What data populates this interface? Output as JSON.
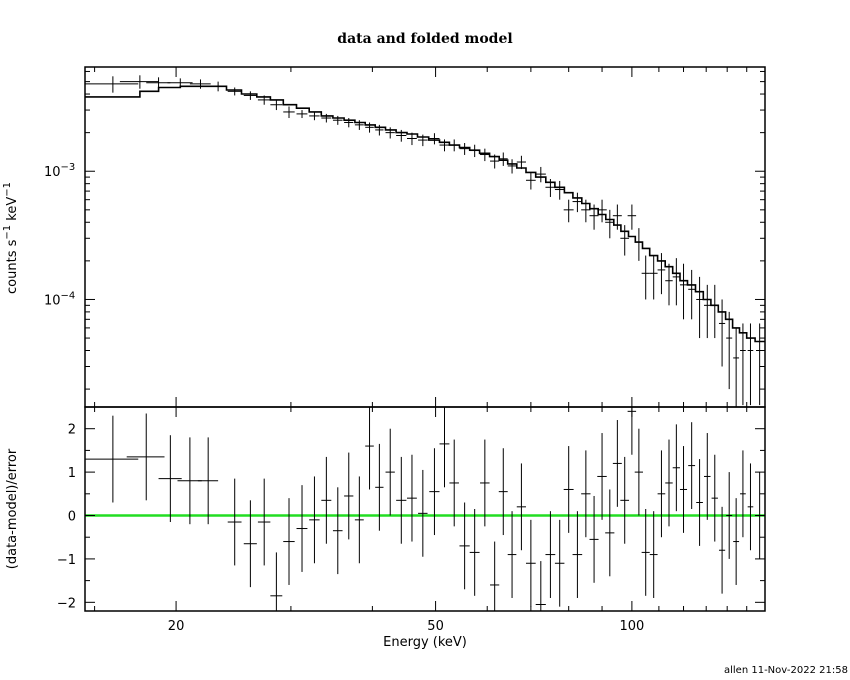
{
  "chart_data": {
    "title": "data and folded model",
    "xlabel": "Energy (keV)",
    "footer": "allen 11-Nov-2022 21:58",
    "x_scale": "log",
    "xlim": [
      14.5,
      160
    ],
    "x_ticks": [
      {
        "value": 20,
        "label": "20"
      },
      {
        "value": 50,
        "label": "50"
      },
      {
        "value": 100,
        "label": "100"
      }
    ],
    "panels": [
      {
        "type": "line",
        "y_scale": "log",
        "ylim": [
          1.45e-05,
          0.0065
        ],
        "ylabel": "counts s",
        "ylabel_parts": {
          "base": "counts s",
          "exp1": "−1",
          "mid": " keV",
          "exp2": "−1"
        },
        "y_ticks": [
          {
            "value": 0.001,
            "base": "10",
            "exp": "−3"
          },
          {
            "value": 0.0001,
            "base": "10",
            "exp": "−4"
          }
        ],
        "data": [
          [
            16.0,
            1.5,
            0.0048,
            0.0007
          ],
          [
            17.6,
            1.2,
            0.005,
            0.0006
          ],
          [
            18.8,
            0.8,
            0.0049,
            0.0005
          ],
          [
            20.3,
            0.9,
            0.0049,
            0.0004
          ],
          [
            21.8,
            0.8,
            0.0048,
            0.0004
          ],
          [
            23.2,
            0.6,
            0.0046,
            0.0004
          ],
          [
            24.6,
            0.6,
            0.0042,
            0.0003
          ],
          [
            26.0,
            0.6,
            0.0039,
            0.0003
          ],
          [
            27.3,
            0.6,
            0.0036,
            0.0003
          ],
          [
            28.5,
            0.6,
            0.0033,
            0.0003
          ],
          [
            29.8,
            0.6,
            0.0029,
            0.0003
          ],
          [
            31.2,
            0.6,
            0.0028,
            0.0002
          ],
          [
            32.6,
            0.6,
            0.0027,
            0.0002
          ],
          [
            34.0,
            0.6,
            0.0026,
            0.0002
          ],
          [
            35.4,
            0.6,
            0.0025,
            0.0002
          ],
          [
            36.8,
            0.6,
            0.0024,
            0.0002
          ],
          [
            38.2,
            0.6,
            0.0023,
            0.0002
          ],
          [
            39.6,
            0.6,
            0.0022,
            0.0002
          ],
          [
            41.0,
            0.6,
            0.0021,
            0.0002
          ],
          [
            42.6,
            0.7,
            0.002,
            0.0002
          ],
          [
            44.3,
            0.8,
            0.0019,
            0.0002
          ],
          [
            46.0,
            0.8,
            0.0018,
            0.0002
          ],
          [
            47.8,
            0.8,
            0.00175,
            0.00018
          ],
          [
            49.8,
            0.9,
            0.0018,
            0.00018
          ],
          [
            51.6,
            0.9,
            0.0016,
            0.00017
          ],
          [
            53.4,
            0.9,
            0.0016,
            0.00017
          ],
          [
            55.4,
            1.0,
            0.0015,
            0.00016
          ],
          [
            57.4,
            1.0,
            0.00145,
            0.00016
          ],
          [
            59.5,
            1.0,
            0.00135,
            0.00015
          ],
          [
            61.6,
            1.0,
            0.0012,
            0.00015
          ],
          [
            63.5,
            1.0,
            0.00125,
            0.00015
          ],
          [
            65.5,
            1.0,
            0.0011,
            0.00014
          ],
          [
            67.7,
            1.1,
            0.00118,
            0.00014
          ],
          [
            70.0,
            1.2,
            0.00085,
            0.00013
          ],
          [
            72.5,
            1.3,
            0.00095,
            0.00013
          ],
          [
            75.0,
            1.3,
            0.00075,
            0.00012
          ],
          [
            77.5,
            1.3,
            0.00072,
            0.00012
          ],
          [
            80.0,
            1.4,
            0.0005,
            0.0001
          ],
          [
            82.5,
            1.4,
            0.00058,
            0.0001
          ],
          [
            85.0,
            1.4,
            0.0005,
            0.0001
          ],
          [
            87.5,
            1.4,
            0.00045,
            0.0001
          ],
          [
            90.0,
            1.5,
            0.0005,
            0.0001
          ],
          [
            92.5,
            1.5,
            0.0004,
            0.0001
          ],
          [
            95.0,
            1.5,
            0.00045,
            0.0001
          ],
          [
            97.5,
            1.5,
            0.0003,
            8e-05
          ],
          [
            100.0,
            1.5,
            0.00045,
            0.0001
          ],
          [
            102.5,
            1.5,
            0.00028,
            8e-05
          ],
          [
            105.0,
            1.5,
            0.00016,
            6e-05
          ],
          [
            108.0,
            1.5,
            0.00016,
            6e-05
          ],
          [
            111.0,
            1.5,
            0.00017,
            6e-05
          ],
          [
            114.0,
            1.5,
            0.00014,
            5e-05
          ],
          [
            117.0,
            1.5,
            0.00015,
            6e-05
          ],
          [
            120.0,
            1.5,
            0.00013,
            6e-05
          ],
          [
            123.5,
            1.5,
            0.00012,
            5e-05
          ],
          [
            127.0,
            1.5,
            0.0001,
            5e-05
          ],
          [
            130.5,
            1.5,
            9e-05,
            4e-05
          ],
          [
            134.0,
            1.5,
            9e-05,
            4e-05
          ],
          [
            137.5,
            1.5,
            6.5e-05,
            3.5e-05
          ],
          [
            141.0,
            1.5,
            5e-05,
            3e-05
          ],
          [
            144.5,
            1.5,
            3.5e-05,
            2.5e-05
          ],
          [
            148.0,
            1.5,
            4e-05,
            2.5e-05
          ],
          [
            152.0,
            1.5,
            4e-05,
            2.5e-05
          ],
          [
            157.0,
            2.0,
            4e-05,
            2.5e-05
          ]
        ],
        "model_steps": [
          [
            14.5,
            0.0038
          ],
          [
            17.6,
            0.0042
          ],
          [
            18.8,
            0.0045
          ],
          [
            20.3,
            0.0046
          ],
          [
            21.8,
            0.0046
          ],
          [
            23.9,
            0.0043
          ],
          [
            25.2,
            0.004
          ],
          [
            26.6,
            0.0038
          ],
          [
            27.9,
            0.0036
          ],
          [
            29.2,
            0.0033
          ],
          [
            30.6,
            0.0031
          ],
          [
            32.0,
            0.0029
          ],
          [
            33.4,
            0.0027
          ],
          [
            34.8,
            0.0026
          ],
          [
            36.2,
            0.0025
          ],
          [
            37.6,
            0.0024
          ],
          [
            39.0,
            0.0023
          ],
          [
            40.4,
            0.0022
          ],
          [
            41.9,
            0.0021
          ],
          [
            43.5,
            0.002
          ],
          [
            45.2,
            0.00195
          ],
          [
            46.9,
            0.00185
          ],
          [
            48.8,
            0.00175
          ],
          [
            50.7,
            0.00168
          ],
          [
            52.5,
            0.0016
          ],
          [
            54.4,
            0.00153
          ],
          [
            56.4,
            0.00146
          ],
          [
            58.4,
            0.00138
          ],
          [
            60.5,
            0.0013
          ],
          [
            62.6,
            0.00122
          ],
          [
            64.5,
            0.00114
          ],
          [
            66.6,
            0.00106
          ],
          [
            68.8,
            0.00098
          ],
          [
            71.2,
            0.0009
          ],
          [
            73.8,
            0.00082
          ],
          [
            76.2,
            0.00075
          ],
          [
            78.8,
            0.00068
          ],
          [
            81.2,
            0.00062
          ],
          [
            83.8,
            0.00056
          ],
          [
            86.2,
            0.00051
          ],
          [
            88.8,
            0.00046
          ],
          [
            91.2,
            0.00042
          ],
          [
            93.8,
            0.00038
          ],
          [
            96.2,
            0.00034
          ],
          [
            98.8,
            0.00031
          ],
          [
            101.2,
            0.00028
          ],
          [
            103.8,
            0.00025
          ],
          [
            106.5,
            0.00022
          ],
          [
            109.5,
            0.0002
          ],
          [
            112.5,
            0.00018
          ],
          [
            115.5,
            0.00016
          ],
          [
            118.5,
            0.00014
          ],
          [
            121.7,
            0.00013
          ],
          [
            125.2,
            0.000115
          ],
          [
            128.7,
            0.0001
          ],
          [
            132.2,
            9e-05
          ],
          [
            135.7,
            8e-05
          ],
          [
            139.2,
            7e-05
          ],
          [
            142.7,
            6e-05
          ],
          [
            146.2,
            5.5e-05
          ],
          [
            150.0,
            5e-05
          ],
          [
            154.5,
            4.7e-05
          ],
          [
            160.0,
            4.7e-05
          ]
        ]
      },
      {
        "type": "line",
        "y_scale": "linear",
        "ylim": [
          -2.2,
          2.5
        ],
        "ylabel": "(data-model)/error",
        "y_ticks": [
          {
            "value": 2,
            "label": "2"
          },
          {
            "value": 1,
            "label": "1"
          },
          {
            "value": 0,
            "label": "0"
          },
          {
            "value": -1,
            "label": "−1"
          },
          {
            "value": -2,
            "label": "−2"
          }
        ],
        "zero_line_color": "#22dd22",
        "data": [
          [
            16.0,
            1.5,
            1.3,
            1.0
          ],
          [
            18.0,
            1.2,
            1.35,
            1.0
          ],
          [
            19.6,
            0.8,
            0.85,
            1.0
          ],
          [
            21.0,
            0.9,
            0.8,
            1.0
          ],
          [
            22.4,
            0.8,
            0.8,
            1.0
          ],
          [
            24.6,
            0.6,
            -0.15,
            1.0
          ],
          [
            26.0,
            0.6,
            -0.65,
            1.0
          ],
          [
            27.3,
            0.6,
            -0.15,
            1.0
          ],
          [
            28.5,
            0.6,
            -1.85,
            1.0
          ],
          [
            29.8,
            0.6,
            -0.6,
            1.0
          ],
          [
            31.2,
            0.6,
            -0.3,
            1.0
          ],
          [
            32.6,
            0.6,
            -0.1,
            1.0
          ],
          [
            34.0,
            0.6,
            0.35,
            1.0
          ],
          [
            35.4,
            0.6,
            -0.35,
            1.0
          ],
          [
            36.8,
            0.6,
            0.45,
            1.0
          ],
          [
            38.2,
            0.6,
            -0.1,
            1.0
          ],
          [
            39.6,
            0.6,
            1.6,
            1.0
          ],
          [
            41.0,
            0.6,
            0.65,
            1.0
          ],
          [
            42.6,
            0.7,
            1.0,
            1.0
          ],
          [
            44.3,
            0.8,
            0.35,
            1.0
          ],
          [
            46.0,
            0.8,
            0.4,
            1.0
          ],
          [
            47.8,
            0.8,
            0.05,
            1.0
          ],
          [
            49.8,
            0.9,
            0.55,
            1.0
          ],
          [
            51.6,
            0.9,
            1.65,
            1.0
          ],
          [
            53.4,
            0.9,
            0.75,
            1.0
          ],
          [
            55.4,
            1.0,
            -0.7,
            1.0
          ],
          [
            57.4,
            1.0,
            -0.85,
            1.0
          ],
          [
            59.5,
            1.0,
            0.75,
            1.0
          ],
          [
            61.6,
            1.0,
            -1.6,
            1.0
          ],
          [
            63.5,
            1.0,
            0.55,
            1.0
          ],
          [
            65.5,
            1.0,
            -0.9,
            1.0
          ],
          [
            67.7,
            1.1,
            0.2,
            1.0
          ],
          [
            70.0,
            1.2,
            -1.1,
            1.0
          ],
          [
            72.5,
            1.3,
            -2.05,
            1.0
          ],
          [
            75.0,
            1.3,
            -0.9,
            1.0
          ],
          [
            77.5,
            1.3,
            -1.1,
            1.0
          ],
          [
            80.0,
            1.4,
            0.6,
            1.0
          ],
          [
            82.5,
            1.4,
            -0.9,
            1.0
          ],
          [
            85.0,
            1.4,
            0.5,
            1.0
          ],
          [
            87.5,
            1.4,
            -0.55,
            1.0
          ],
          [
            90.0,
            1.5,
            0.9,
            1.0
          ],
          [
            92.5,
            1.5,
            -0.4,
            1.0
          ],
          [
            95.0,
            1.5,
            1.2,
            1.0
          ],
          [
            97.5,
            1.5,
            0.35,
            1.0
          ],
          [
            100.0,
            1.5,
            2.4,
            1.0
          ],
          [
            102.5,
            1.5,
            1.0,
            1.0
          ],
          [
            105.0,
            1.5,
            -0.85,
            1.0
          ],
          [
            108.0,
            1.5,
            -0.9,
            1.0
          ],
          [
            111.0,
            1.5,
            0.5,
            1.0
          ],
          [
            114.0,
            1.5,
            0.75,
            1.0
          ],
          [
            117.0,
            1.5,
            1.1,
            1.0
          ],
          [
            120.0,
            1.5,
            0.6,
            1.0
          ],
          [
            123.5,
            1.5,
            1.15,
            1.0
          ],
          [
            127.0,
            1.5,
            0.3,
            1.0
          ],
          [
            130.5,
            1.5,
            0.9,
            1.0
          ],
          [
            134.0,
            1.5,
            0.4,
            1.0
          ],
          [
            137.5,
            1.5,
            -0.8,
            1.0
          ],
          [
            141.0,
            1.5,
            0.0,
            1.0
          ],
          [
            144.5,
            1.5,
            -0.6,
            1.0
          ],
          [
            148.0,
            1.5,
            0.5,
            1.0
          ],
          [
            152.0,
            1.5,
            0.2,
            1.0
          ],
          [
            157.0,
            2.0,
            0.0,
            1.0
          ]
        ]
      }
    ]
  }
}
